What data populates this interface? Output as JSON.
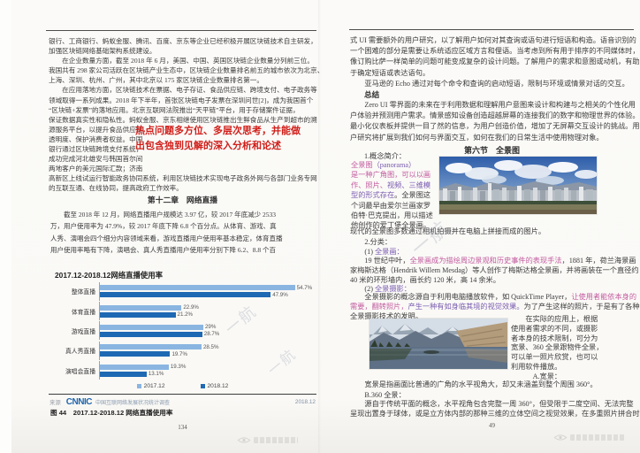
{
  "palette": {
    "annotation_red": "#d01f1a",
    "highlight_pink": "#c25c9f",
    "highlight_purple": "#7a5cb0",
    "bar_2017": "#8ab5e1",
    "bar_2018": "#1e69b3"
  },
  "annotation": {
    "lines": [
      "热点问题多方位、多层次思考，并能做",
      "出包含独到见解的深入分析和论述"
    ]
  },
  "left_page": {
    "para1_lines": [
      "银行、工商银行、蚂蚁金服、腾讯、百度、京东等企业已经积极开展区块链技术自主研发，",
      "加强区块链网络基础架构系统建设。",
      "　　在企业数量方面，截至 2018 年 6 月，美国、中国、英国区块链企业数量分列前三位。",
      "我国共有 298 家公司活跃在区块链产业生态中，区块链企业数量排名前五的城市依次为北京、",
      "上海、深圳、杭州、广州，其中北京以 175 家区块链企业数量排名第一。",
      "　　在应用落地方面，区块链技术在票据、电子存证、食品供应链、跨境支付、电子政务等",
      "领域取得一系列成果。2018 年下半年，首张区块链电子发票在深圳问世[2]，成为我国首个",
      "“区块链+发票”的落地应用。北京互联网法院推出“天平链”平台，用于存储案件证据，",
      "保证数据真实性和隐私性。蚂蚁金服、京东相继使用区块链推出生鲜食品从生产到超市的溯"
    ],
    "short_lines": [
      "源服务平台，以提升食品供应链",
      "透明度、保护消费者权益。中国",
      "银行通过区块链跨境支付系统，",
      "成功完成河北雄安与韩国首尔间",
      "两地客户的美元国际汇款；济南"
    ],
    "tail_lines": [
      "高新区上线试运行智能政务协同系统，利用区块链技术实现电子政务外网与各部门业务专网",
      "的互联互通、在线协同，提高政府工作效率。"
    ],
    "chapter_heading": "第十二章　网络直播",
    "para2_lines": [
      "　　截至 2018 年 12 月，网络直播用户规模达 3.97 亿，较 2017 年底减少 2533",
      "万，用户使用率为 47.9%，较 2017 年底下降 6.8 个百分点。从体育、游戏、真",
      "人秀、演唱会四个细分内容领域来看，游戏直播用户使用率基本稳定，体育直播",
      "用户使用率略有下降，演唱会、真人秀直播用户使用率分别下降 6.2、8.8 个百"
    ],
    "source": {
      "label": "来源",
      "logo": "CNNIC",
      "desc": "中国互联网络发展状况统计调查",
      "date": "2018.12"
    },
    "figure_caption": "图 44　2017.12-2018.12 网络直播使用率",
    "page_number": "134"
  },
  "chart_data": {
    "type": "bar",
    "orientation": "horizontal",
    "title": "2017.12-2018.12网络直播使用率",
    "categories": [
      "整体直播",
      "体育直播",
      "游戏直播",
      "真人秀直播",
      "演唱会直播"
    ],
    "series": [
      {
        "name": "2017.12",
        "color": "#8ab5e1",
        "values": [
          54.7,
          22.9,
          29.0,
          28.5,
          19.3
        ]
      },
      {
        "name": "2018.12",
        "color": "#1e69b3",
        "values": [
          47.9,
          21.2,
          28.7,
          19.7,
          13.1
        ]
      }
    ],
    "xlim": [
      0,
      60
    ],
    "value_suffix": "%",
    "grid": false,
    "legend_position": "bottom"
  },
  "right_page": {
    "para1_lines": [
      "式 UI 需要额外的用户研究，以了解用户如何对其查询或语句进行短语和构造。语音识别的",
      "一个困难的部分是需要让系统适应区域方言和俚语。当考虑到所有用于排序的不同媒体时，",
      "像订购比萨一样简单的问题可能变成复杂的设计问题。了解用户的需求和意图或动机，有助",
      "于确定短语或表达语句。",
      "　　亚马逊的 Echo 通过对每个命令和查询的启动短语，限制与环境或情景对话的交互。"
    ],
    "summary_heading": "总结",
    "summary_lines": [
      "　　Zero UI 零界面的未来在于利用数据和理解用户意图来设计和构建与之相关的个性化用",
      "户体验并预测用户需求。情景感知设备创造超越屏幕的连接我们的数字和物理世界的体验。",
      "最小化仪表板并提供一目了然的信息，为用户创造价值，增加了无屏幕交互设计的挑战。用",
      "户研究将扩展到我们如何与界面交互，如何在我们的日常生活中使用物理对象。"
    ],
    "section_heading": "第六节　全景图",
    "concept_label": "1.概念简介：",
    "concept_col_lines": [
      [
        {
          "t": "全景图",
          "c": "pink"
        },
        {
          "t": "（panorama）",
          "c": "purple"
        }
      ],
      [
        {
          "t": "是一种广角图，可以以画",
          "c": "pink"
        }
      ],
      [
        {
          "t": "作、照片、",
          "c": "pink"
        },
        {
          "t": "视频、三维模",
          "c": "purple"
        }
      ],
      [
        {
          "t": "型的形式存在",
          "c": "purple"
        },
        {
          "t": "。全景图这"
        }
      ],
      [
        "个词最早由爱尔兰画家罗"
      ],
      [
        "伯特·巴克提出，用以描述"
      ],
      [
        "他创作的爱丁堡全景画。"
      ]
    ],
    "modern_line": "现代的全景图多数通过相机拍摄并在电脑上拼接而成的图片。",
    "class_line": "　　2.分类：",
    "p1_label_line": [
      [
        {
          "t": "　　(1) "
        },
        {
          "t": "全景画：",
          "c": "purple"
        }
      ]
    ],
    "para19_lines": [
      [
        {
          "t": "　　19 世纪中叶，"
        },
        {
          "t": "全景画成为描绘周边景观和历史事件的表现手法",
          "c": "pink"
        },
        {
          "t": "，1881 年，荷兰海景画"
        }
      ],
      [
        "家梅斯达格（Hendrik Willem Mesdag）等人创作了梅斯达格全景画，并将画装在一个直径约"
      ],
      [
        "40 米的环形墙内，画长约 120 米，高 14 余米。"
      ]
    ],
    "p2_label_line": [
      [
        {
          "t": "　　(2) "
        },
        {
          "t": "全景摄影：",
          "c": "purple"
        }
      ]
    ],
    "shoot_lines": [
      [
        {
          "t": "　　全景摄影的概念源自于利用电脑播放软件，如 QuickTime Player，"
        },
        {
          "t": "让使用者能依本身的",
          "c": "pink"
        }
      ],
      [
        {
          "t": "需要，翻转照片，",
          "c": "pink"
        },
        {
          "t": "产生一种有如身临其境的视觉效果。",
          "c": "purple"
        },
        {
          "t": "为了产生这样的照片，于是有了各种"
        }
      ],
      [
        "全景摄影技术的发明。"
      ]
    ],
    "side_col_lines": [
      [
        "　　在实际的应用上，根据"
      ],
      [
        "使用者需求的不同，或摄影"
      ],
      [
        "者本身的技术限制，可分为"
      ],
      [
        "宽景、360 全景跟物件全景，"
      ],
      [
        "可以单一照片欣赏，也可以"
      ],
      [
        "利用软件播放。"
      ],
      [
        "　　　A.宽景："
      ]
    ],
    "wide_line": "　　宽景是指画面比普通的广角的水平视角大，却又未涵盖到整个周围 360°。",
    "b360_label": "　　B.360 全景：",
    "b360_lines": [
      [
        "　　源自于传统平面的概念，水平视角包含完整一周 360°，但受限于二度空间、无法完整"
      ],
      [
        "呈现出置身于球体，或是立方体内部的那种三维的立体空间之视觉效果，在多重照片拼合时，"
      ]
    ],
    "page_number": "49"
  },
  "watermarks": {
    "diag_text": "一航",
    "stamp_icon": "weibo-eye-icon"
  }
}
